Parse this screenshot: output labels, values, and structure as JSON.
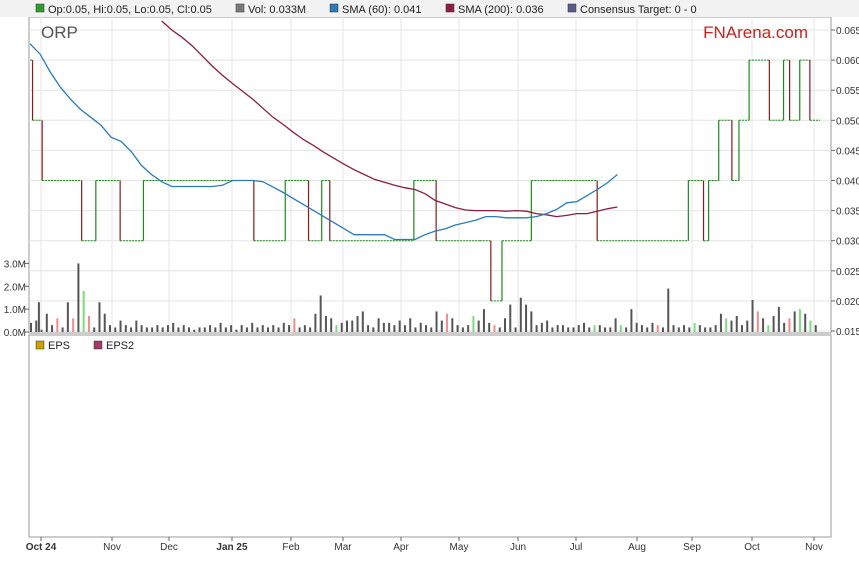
{
  "legend": {
    "ohlc": "Op:0.05, Hi:0.05, Lo:0.05, Cl:0.05",
    "vol": "Vol: 0.033M",
    "sma60": "SMA (60): 0.041",
    "sma200": "SMA (200): 0.036",
    "consensus": "Consensus Target: 0 - 0"
  },
  "ticker": "ORP",
  "brand": "FNArena.com",
  "eps_legend": {
    "eps": "EPS",
    "eps2": "EPS2"
  },
  "colors": {
    "up": "#1a8a1a",
    "down": "#8b1a1a",
    "sma60": "#2b7bb9",
    "sma200": "#8b1e3f",
    "vol": "#555555",
    "vol_up": "#7ddc7d",
    "vol_down": "#f08c8c",
    "brand": "#cc2222",
    "swatch_ohlc": "#2e9d2e",
    "swatch_vol": "#7a7a7a",
    "swatch_sma60": "#2b7bb9",
    "swatch_sma200": "#8b1e3f",
    "swatch_consensus": "#5a5a8a",
    "swatch_eps": "#c8a000",
    "swatch_eps2": "#a03a6a"
  },
  "chart_data": {
    "type": "line",
    "price_axis": {
      "ticks": [
        "0.065",
        "0.060",
        "0.055",
        "0.050",
        "0.045",
        "0.040",
        "0.035",
        "0.030",
        "0.025",
        "0.020",
        "0.015"
      ],
      "range": [
        0.015,
        0.065
      ]
    },
    "volume_axis": {
      "ticks": [
        "3.0M",
        "2.0M",
        "1.0M",
        "0.0M"
      ],
      "range": [
        0,
        3.5
      ]
    },
    "x_labels": [
      "Oct 24",
      "Nov",
      "Dec",
      "Jan 25",
      "Feb",
      "Mar",
      "Apr",
      "May",
      "Jun",
      "Jul",
      "Aug",
      "Sep",
      "Oct",
      "Nov"
    ],
    "price_steps": [
      [
        0,
        0.06
      ],
      [
        0.25,
        0.05
      ],
      [
        1.2,
        0.04
      ],
      [
        5.1,
        0.03
      ],
      [
        6.5,
        0.04
      ],
      [
        8.9,
        0.03
      ],
      [
        11.2,
        0.04
      ],
      [
        22.1,
        0.03
      ],
      [
        25.2,
        0.04
      ],
      [
        27.5,
        0.03
      ],
      [
        28.8,
        0.04
      ],
      [
        29.6,
        0.03
      ],
      [
        37.9,
        0.04
      ],
      [
        40.1,
        0.03
      ],
      [
        44.4,
        0.03
      ],
      [
        45.5,
        0.02
      ],
      [
        46.6,
        0.03
      ],
      [
        49.5,
        0.04
      ],
      [
        55.1,
        0.04
      ],
      [
        56.0,
        0.03
      ],
      [
        63.2,
        0.03
      ],
      [
        65.0,
        0.04
      ],
      [
        66.5,
        0.03
      ],
      [
        67.0,
        0.04
      ],
      [
        68.0,
        0.05
      ],
      [
        69.3,
        0.04
      ],
      [
        70.0,
        0.05
      ],
      [
        71.0,
        0.06
      ],
      [
        73.0,
        0.05
      ],
      [
        74.4,
        0.06
      ],
      [
        75.0,
        0.05
      ],
      [
        76.0,
        0.06
      ],
      [
        77.0,
        0.05
      ]
    ],
    "series": [
      {
        "name": "SMA (60)",
        "points": [
          [
            0,
            0.0627
          ],
          [
            1,
            0.061
          ],
          [
            2,
            0.058
          ],
          [
            3,
            0.0555
          ],
          [
            4,
            0.0535
          ],
          [
            5,
            0.0518
          ],
          [
            6,
            0.0505
          ],
          [
            7,
            0.0492
          ],
          [
            8,
            0.0472
          ],
          [
            9,
            0.0465
          ],
          [
            10,
            0.0448
          ],
          [
            11,
            0.0425
          ],
          [
            12,
            0.041
          ],
          [
            13,
            0.0398
          ],
          [
            14,
            0.039
          ],
          [
            15,
            0.039
          ],
          [
            16,
            0.039
          ],
          [
            17,
            0.039
          ],
          [
            18,
            0.039
          ],
          [
            19,
            0.0392
          ],
          [
            20,
            0.04
          ],
          [
            21,
            0.04
          ],
          [
            22,
            0.04
          ],
          [
            23,
            0.0398
          ],
          [
            24,
            0.0389
          ],
          [
            25,
            0.038
          ],
          [
            26,
            0.037
          ],
          [
            27,
            0.036
          ],
          [
            28,
            0.035
          ],
          [
            29,
            0.034
          ],
          [
            30,
            0.033
          ],
          [
            31,
            0.032
          ],
          [
            32,
            0.031
          ],
          [
            33,
            0.031
          ],
          [
            34,
            0.031
          ],
          [
            35,
            0.031
          ],
          [
            36,
            0.0302
          ],
          [
            37,
            0.0302
          ],
          [
            38,
            0.0302
          ],
          [
            39,
            0.031
          ],
          [
            40,
            0.0316
          ],
          [
            41,
            0.032
          ],
          [
            42,
            0.0326
          ],
          [
            43,
            0.033
          ],
          [
            44,
            0.0334
          ],
          [
            45,
            0.034
          ],
          [
            46,
            0.034
          ],
          [
            47,
            0.0338
          ],
          [
            48,
            0.0338
          ],
          [
            49,
            0.0338
          ],
          [
            50,
            0.034
          ],
          [
            51,
            0.0345
          ],
          [
            52,
            0.0352
          ],
          [
            53,
            0.0363
          ],
          [
            54,
            0.0365
          ],
          [
            55,
            0.0375
          ],
          [
            56,
            0.0385
          ],
          [
            57,
            0.0396
          ],
          [
            58,
            0.041
          ]
        ]
      },
      {
        "name": "SMA (200)",
        "points": [
          [
            13,
            0.0665
          ],
          [
            14,
            0.065
          ],
          [
            15,
            0.0638
          ],
          [
            16,
            0.0624
          ],
          [
            17,
            0.0607
          ],
          [
            18,
            0.059
          ],
          [
            19,
            0.0575
          ],
          [
            20,
            0.0561
          ],
          [
            21,
            0.0548
          ],
          [
            22,
            0.0535
          ],
          [
            23,
            0.052
          ],
          [
            24,
            0.0505
          ],
          [
            25,
            0.0493
          ],
          [
            26,
            0.048
          ],
          [
            27,
            0.0468
          ],
          [
            28,
            0.0458
          ],
          [
            29,
            0.0447
          ],
          [
            30,
            0.0437
          ],
          [
            31,
            0.0427
          ],
          [
            32,
            0.0418
          ],
          [
            33,
            0.041
          ],
          [
            34,
            0.0402
          ],
          [
            35,
            0.0397
          ],
          [
            36,
            0.0392
          ],
          [
            37,
            0.0388
          ],
          [
            38,
            0.0385
          ],
          [
            39,
            0.0378
          ],
          [
            40,
            0.0367
          ],
          [
            41,
            0.0361
          ],
          [
            42,
            0.0355
          ],
          [
            43,
            0.0351
          ],
          [
            44,
            0.035
          ],
          [
            45,
            0.035
          ],
          [
            46,
            0.035
          ],
          [
            47,
            0.0349
          ],
          [
            48,
            0.035
          ],
          [
            49,
            0.0349
          ],
          [
            50,
            0.0345
          ],
          [
            51,
            0.0343
          ],
          [
            52,
            0.034
          ],
          [
            53,
            0.0342
          ],
          [
            54,
            0.0345
          ],
          [
            55,
            0.0345
          ],
          [
            56,
            0.0349
          ],
          [
            57,
            0.0353
          ],
          [
            58,
            0.0356
          ]
        ]
      }
    ],
    "volumes": [
      [
        0,
        0.4
      ],
      [
        1,
        0.5
      ],
      [
        1.5,
        1.3
      ],
      [
        2,
        0.1
      ],
      [
        3,
        0.8
      ],
      [
        4,
        0.3
      ],
      [
        5,
        0.6
      ],
      [
        6,
        0.2
      ],
      [
        7,
        1.3
      ],
      [
        8,
        0.6
      ],
      [
        9,
        3.0
      ],
      [
        10,
        1.8
      ],
      [
        11,
        0.7
      ],
      [
        12,
        0.2
      ],
      [
        13,
        1.3
      ],
      [
        14,
        0.8
      ],
      [
        15,
        0.3
      ],
      [
        16,
        0.2
      ],
      [
        17,
        0.5
      ],
      [
        18,
        0.3
      ],
      [
        19,
        0.2
      ],
      [
        20,
        0.5
      ],
      [
        21,
        0.3
      ],
      [
        22,
        0.2
      ],
      [
        23,
        0.2
      ],
      [
        24,
        0.3
      ],
      [
        25,
        0.2
      ],
      [
        26,
        0.3
      ],
      [
        27,
        0.4
      ],
      [
        28,
        0.2
      ],
      [
        29,
        0.3
      ],
      [
        30,
        0.2
      ],
      [
        31,
        0.1
      ],
      [
        32,
        0.2
      ],
      [
        33,
        0.2
      ],
      [
        34,
        0.3
      ],
      [
        35,
        0.2
      ],
      [
        36,
        0.4
      ],
      [
        37,
        0.2
      ],
      [
        38,
        0.3
      ],
      [
        39,
        0.1
      ],
      [
        40,
        0.3
      ],
      [
        41,
        0.2
      ],
      [
        42,
        0.4
      ],
      [
        43,
        0.2
      ],
      [
        44,
        0.3
      ],
      [
        45,
        0.2
      ],
      [
        46,
        0.3
      ],
      [
        47,
        0.2
      ],
      [
        48,
        0.4
      ],
      [
        49,
        0.3
      ],
      [
        50,
        0.6
      ],
      [
        51,
        0.2
      ],
      [
        52,
        0.3
      ],
      [
        53,
        0.2
      ],
      [
        54,
        0.8
      ],
      [
        55,
        1.6
      ],
      [
        56,
        0.7
      ],
      [
        57,
        0.6
      ],
      [
        58,
        0.3
      ],
      [
        59,
        0.4
      ],
      [
        60,
        0.5
      ],
      [
        61,
        0.5
      ],
      [
        62,
        0.7
      ],
      [
        63,
        0.9
      ],
      [
        64,
        0.3
      ],
      [
        65,
        0.2
      ],
      [
        66,
        0.6
      ],
      [
        67,
        0.4
      ],
      [
        68,
        0.4
      ],
      [
        69,
        0.3
      ],
      [
        70,
        0.5
      ],
      [
        71,
        0.3
      ],
      [
        72,
        0.6
      ],
      [
        73,
        0.2
      ],
      [
        74,
        0.4
      ],
      [
        75,
        0.3
      ],
      [
        76,
        0.2
      ],
      [
        77,
        0.9
      ],
      [
        78,
        0.5
      ],
      [
        79,
        0.8
      ],
      [
        80,
        0.6
      ],
      [
        81,
        0.3
      ],
      [
        82,
        0.2
      ],
      [
        83,
        0.3
      ],
      [
        84,
        0.7
      ],
      [
        85,
        0.5
      ],
      [
        86,
        1.0
      ],
      [
        87,
        0.4
      ],
      [
        88,
        0.3
      ],
      [
        89,
        0.2
      ],
      [
        90,
        0.6
      ],
      [
        91,
        1.2
      ],
      [
        92,
        0.2
      ],
      [
        93,
        1.5
      ],
      [
        94,
        1.2
      ],
      [
        95,
        0.9
      ],
      [
        96,
        0.3
      ],
      [
        97,
        0.4
      ],
      [
        98,
        0.5
      ],
      [
        99,
        0.2
      ],
      [
        100,
        0.3
      ],
      [
        101,
        0.3
      ],
      [
        102,
        0.2
      ],
      [
        103,
        0.2
      ],
      [
        104,
        0.3
      ],
      [
        105,
        0.4
      ],
      [
        106,
        0.2
      ],
      [
        107,
        0.3
      ],
      [
        108,
        0.3
      ],
      [
        109,
        0.2
      ],
      [
        110,
        0.2
      ],
      [
        111,
        0.6
      ],
      [
        112,
        0.3
      ],
      [
        113,
        0.2
      ],
      [
        114,
        1.0
      ],
      [
        115,
        0.4
      ],
      [
        116,
        0.3
      ],
      [
        117,
        0.2
      ],
      [
        118,
        0.4
      ],
      [
        119,
        0.3
      ],
      [
        120,
        0.2
      ],
      [
        121,
        1.9
      ],
      [
        122,
        0.3
      ],
      [
        123,
        0.2
      ],
      [
        124,
        0.3
      ],
      [
        125,
        0.2
      ],
      [
        126,
        0.4
      ],
      [
        127,
        0.3
      ],
      [
        128,
        0.2
      ],
      [
        129,
        0.2
      ],
      [
        130,
        0.3
      ],
      [
        131,
        0.8
      ],
      [
        132,
        0.6
      ],
      [
        133,
        0.5
      ],
      [
        134,
        0.7
      ],
      [
        135,
        0.3
      ],
      [
        136,
        0.5
      ],
      [
        137,
        1.4
      ],
      [
        138,
        0.9
      ],
      [
        139,
        0.6
      ],
      [
        140,
        0.3
      ],
      [
        141,
        0.7
      ],
      [
        142,
        1.1
      ],
      [
        143,
        0.4
      ],
      [
        144,
        0.6
      ],
      [
        145,
        0.9
      ],
      [
        146,
        1.0
      ],
      [
        147,
        0.8
      ],
      [
        148,
        0.5
      ],
      [
        149,
        0.3
      ]
    ],
    "vol_up_idx": [
      10,
      58,
      84,
      107,
      112,
      126,
      132,
      140,
      146,
      148
    ],
    "vol_down_idx": [
      5,
      8,
      11,
      50,
      58,
      79,
      88,
      119,
      138,
      144
    ]
  }
}
